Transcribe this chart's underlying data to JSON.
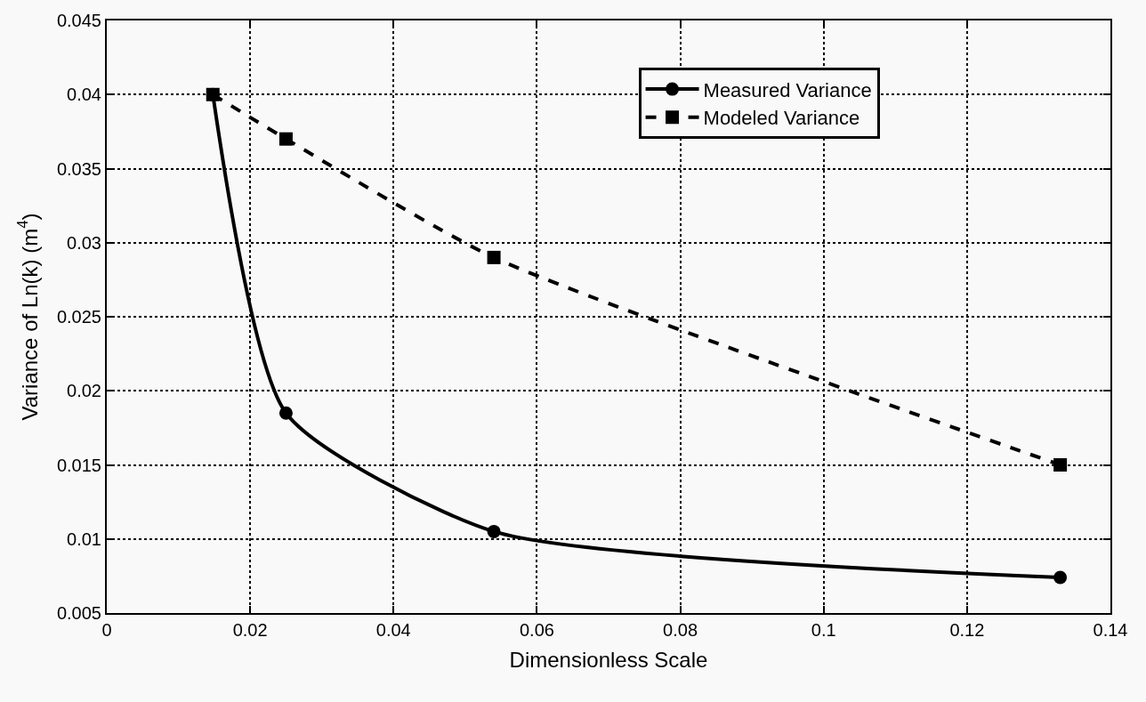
{
  "chart_data": {
    "type": "line",
    "xlabel": "Dimensionless Scale",
    "ylabel": "Variance of Ln(k) (m$^{4}$)",
    "x": [
      0.0148,
      0.025,
      0.054,
      0.133
    ],
    "series": [
      {
        "name": "Measured Variance",
        "color": "#000000",
        "values": [
          0.04,
          0.0185,
          0.0105,
          0.0074
        ],
        "marker": "circle",
        "line_style": "solid"
      },
      {
        "name": "Modeled Variance",
        "color": "#000000",
        "values": [
          0.04,
          0.037,
          0.029,
          0.015
        ],
        "marker": "square",
        "line_style": "dashed"
      }
    ],
    "xlim": [
      0,
      0.14
    ],
    "xticks": [
      0,
      0.02,
      0.04,
      0.06,
      0.08,
      0.1,
      0.12,
      0.14
    ],
    "ylim": [
      0.005,
      0.045
    ],
    "yticks": [
      0.005,
      0.01,
      0.015,
      0.02,
      0.025,
      0.03,
      0.035,
      0.04,
      0.045
    ],
    "grid": true,
    "legend": "top right"
  }
}
